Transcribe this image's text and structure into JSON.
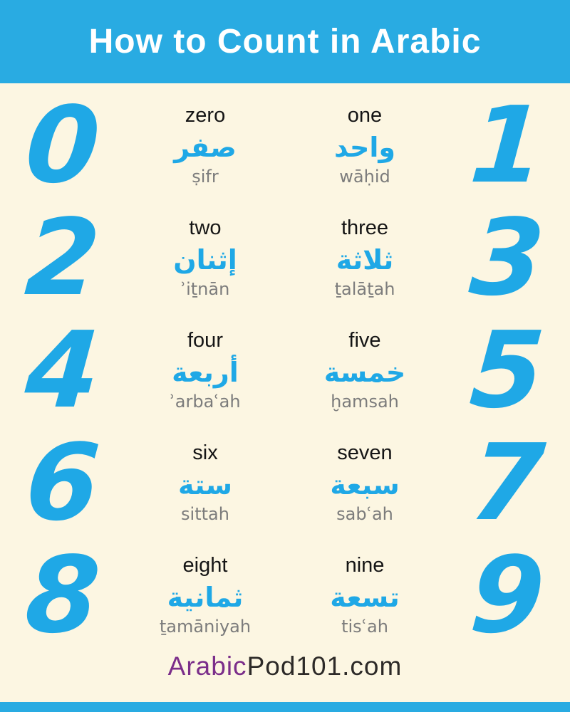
{
  "header": {
    "title": "How to Count in Arabic"
  },
  "rows": [
    {
      "left_digit": "0",
      "right_digit": "1",
      "entries": [
        {
          "english": "zero",
          "arabic": "صفر",
          "romanization": "ṣifr"
        },
        {
          "english": "one",
          "arabic": "واحد",
          "romanization": "wāḥid"
        }
      ]
    },
    {
      "left_digit": "2",
      "right_digit": "3",
      "entries": [
        {
          "english": "two",
          "arabic": "إثنان",
          "romanization": "ʾiṯnān"
        },
        {
          "english": "three",
          "arabic": "ثلاثة",
          "romanization": "ṯalāṯah"
        }
      ]
    },
    {
      "left_digit": "4",
      "right_digit": "5",
      "entries": [
        {
          "english": "four",
          "arabic": "أربعة",
          "romanization": "ʾarbaʿah"
        },
        {
          "english": "five",
          "arabic": "خمسة",
          "romanization": "ḫamsah"
        }
      ]
    },
    {
      "left_digit": "6",
      "right_digit": "7",
      "entries": [
        {
          "english": "six",
          "arabic": "ستة",
          "romanization": "sittah"
        },
        {
          "english": "seven",
          "arabic": "سبعة",
          "romanization": "sabʿah"
        }
      ]
    },
    {
      "left_digit": "8",
      "right_digit": "9",
      "entries": [
        {
          "english": "eight",
          "arabic": "ثمانية",
          "romanization": "ṯamāniyah"
        },
        {
          "english": "nine",
          "arabic": "تسعة",
          "romanization": "tisʿah"
        }
      ]
    }
  ],
  "footer": {
    "brand_arabic": "Arabic",
    "brand_rest": "Pod101.com"
  },
  "colors": {
    "accent_blue": "#29ABE2",
    "digit_blue": "#1FA8E6",
    "background_cream": "#FCF6E2",
    "brand_purple": "#7B2E8A",
    "footer_dark": "#2D2A28",
    "english_text": "#151515",
    "romanization_gray": "#7C7C7C",
    "title_white": "#FFFFFF"
  }
}
